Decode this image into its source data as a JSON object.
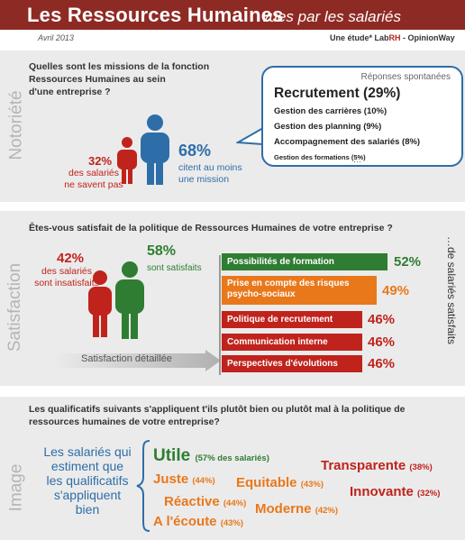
{
  "header": {
    "title": "Les Ressources Humaines",
    "subtitle": "vues par les salariés"
  },
  "meta": {
    "date": "Avril 2013",
    "study_prefix": "Une étude* Lab",
    "study_rh": "RH",
    "study_suffix": " - OpinionWay"
  },
  "notoriete": {
    "side_label": "Notoriété",
    "question": [
      "Quelles sont les missions de la fonction",
      "Ressources Humaines au sein",
      "d'une entreprise ?"
    ],
    "pct_no": "32%",
    "no_text": [
      "des salariés",
      "ne savent pas"
    ],
    "pct_yes": "68%",
    "yes_text": [
      "citent au moins",
      "une mission"
    ],
    "bubble": {
      "title": "Réponses spontanées",
      "lead": "Recrutement (29%)",
      "items": [
        "Gestion des carrières (10%)",
        "Gestion des planning (9%)",
        "Accompagnement des salariés (8%)"
      ],
      "small": "Gestion des formations (5%)",
      "dots": "…"
    }
  },
  "satisfaction": {
    "side_label": "Satisfaction",
    "question": "Êtes-vous satisfait de la politique de Ressources Humaines de votre entreprise ?",
    "pct_no": "42%",
    "no_text": [
      "des salariés",
      "sont insatisfaits"
    ],
    "pct_yes": "58%",
    "yes_text": "sont satisfaits",
    "detail_label": "Satisfaction détaillée",
    "note": "…de salariés satisfaits",
    "colors": {
      "green": "#2e7d32",
      "orange": "#e9781b",
      "red": "#c0231c"
    },
    "bars": [
      {
        "label": "Possibilités de formation",
        "pct": "52%"
      },
      {
        "label": "Prise en compte des risques psycho-sociaux",
        "label_l1": "Prise en compte des risques",
        "label_l2": "psycho-sociaux",
        "pct": "49%"
      },
      {
        "label": "Politique de recrutement",
        "pct": "46%"
      },
      {
        "label": "Communication interne",
        "pct": "46%"
      },
      {
        "label": "Perspectives d'évolutions",
        "pct": "46%"
      }
    ]
  },
  "image": {
    "side_label": "Image",
    "question": [
      "Les qualificatifs suivants s'appliquent t'ils plutôt bien ou plutôt mal à la politique de",
      "ressources humaines de votre entreprise?"
    ],
    "brace_text": [
      "Les salariés qui",
      "estiment que",
      "les qualificatifs",
      "s'appliquent",
      "bien"
    ],
    "words": {
      "utile": {
        "w": "Utile",
        "p": "(57% des salariés)"
      },
      "juste": {
        "w": "Juste",
        "p": "(44%)"
      },
      "equitable": {
        "w": "Equitable",
        "p": "(43%)"
      },
      "transparente": {
        "w": "Transparente",
        "p": "(38%)"
      },
      "innovante": {
        "w": "Innovante",
        "p": "(32%)"
      },
      "reactive": {
        "w": "Réactive",
        "p": "(44%)"
      },
      "moderne": {
        "w": "Moderne",
        "p": "(42%)"
      },
      "ecoute": {
        "w": "A l'écoute",
        "p": "(43%)"
      }
    }
  }
}
